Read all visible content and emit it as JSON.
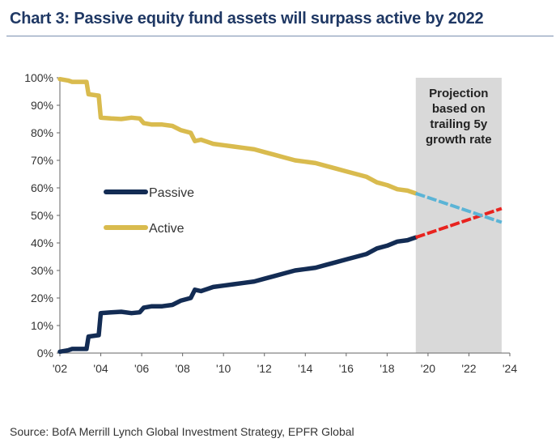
{
  "header": {
    "title": "Chart 3: Passive equity fund assets will surpass active by 2022"
  },
  "footer": {
    "source": "Source: BofA Merrill Lynch Global Investment Strategy, EPFR Global"
  },
  "chart_data": {
    "type": "line",
    "title": "Chart 3: Passive equity fund assets will surpass active by 2022",
    "xlabel": "",
    "ylabel": "",
    "xlim": [
      2002,
      2024
    ],
    "ylim": [
      0,
      100
    ],
    "y_unit": "%",
    "x_ticks": [
      "'02",
      "'04",
      "'06",
      "'08",
      "'10",
      "'12",
      "'14",
      "'16",
      "'18",
      "'20",
      "'22",
      "'24"
    ],
    "y_ticks": [
      "0%",
      "10%",
      "20%",
      "30%",
      "40%",
      "50%",
      "60%",
      "70%",
      "80%",
      "90%",
      "100%"
    ],
    "grid": false,
    "legend_position": "center-left",
    "projection": {
      "x_start": 2019.4,
      "x_end": 2023.6,
      "label_lines": [
        "Projection",
        "based on",
        "trailing 5y",
        "growth rate"
      ],
      "shade_color": "#d9d9d9"
    },
    "series": [
      {
        "name": "Passive",
        "color": "#132c54",
        "x": [
          2002.0,
          2002.4,
          2002.6,
          2002.9,
          2003.3,
          2003.4,
          2003.9,
          2004.0,
          2004.5,
          2005.0,
          2005.5,
          2005.9,
          2006.1,
          2006.5,
          2007.0,
          2007.5,
          2007.9,
          2008.4,
          2008.6,
          2008.9,
          2009.5,
          2010.0,
          2010.5,
          2011.0,
          2011.5,
          2012.0,
          2012.5,
          2013.0,
          2013.5,
          2014.0,
          2014.5,
          2015.0,
          2015.5,
          2016.0,
          2016.5,
          2017.0,
          2017.5,
          2018.0,
          2018.5,
          2019.0,
          2019.4
        ],
        "values": [
          0.5,
          1.0,
          1.5,
          1.5,
          1.5,
          6.0,
          6.5,
          14.5,
          14.8,
          15.0,
          14.5,
          14.8,
          16.5,
          17.0,
          17.0,
          17.5,
          19.0,
          20.0,
          23.0,
          22.5,
          24.0,
          24.5,
          25.0,
          25.5,
          26.0,
          27.0,
          28.0,
          29.0,
          30.0,
          30.5,
          31.0,
          32.0,
          33.0,
          34.0,
          35.0,
          36.0,
          38.0,
          39.0,
          40.5,
          41.0,
          42.0
        ]
      },
      {
        "name": "Active",
        "color": "#d9bb4e",
        "x": [
          2002.0,
          2002.4,
          2002.6,
          2002.9,
          2003.3,
          2003.4,
          2003.9,
          2004.0,
          2004.5,
          2005.0,
          2005.5,
          2005.9,
          2006.1,
          2006.5,
          2007.0,
          2007.5,
          2007.9,
          2008.4,
          2008.6,
          2008.9,
          2009.5,
          2010.0,
          2010.5,
          2011.0,
          2011.5,
          2012.0,
          2012.5,
          2013.0,
          2013.5,
          2014.0,
          2014.5,
          2015.0,
          2015.5,
          2016.0,
          2016.5,
          2017.0,
          2017.5,
          2018.0,
          2018.5,
          2019.0,
          2019.4
        ],
        "values": [
          99.5,
          99.0,
          98.5,
          98.5,
          98.5,
          94.0,
          93.5,
          85.5,
          85.2,
          85.0,
          85.5,
          85.2,
          83.5,
          83.0,
          83.0,
          82.5,
          81.0,
          80.0,
          77.0,
          77.5,
          76.0,
          75.5,
          75.0,
          74.5,
          74.0,
          73.0,
          72.0,
          71.0,
          70.0,
          69.5,
          69.0,
          68.0,
          67.0,
          66.0,
          65.0,
          64.0,
          62.0,
          61.0,
          59.5,
          59.0,
          58.0
        ]
      },
      {
        "name": "Passive projection",
        "color": "#e8231f",
        "dashed": true,
        "x": [
          2019.4,
          2023.6
        ],
        "values": [
          42.0,
          52.5
        ]
      },
      {
        "name": "Active projection",
        "color": "#5bb4d6",
        "dashed": true,
        "x": [
          2019.4,
          2023.6
        ],
        "values": [
          58.0,
          47.5
        ]
      }
    ]
  }
}
